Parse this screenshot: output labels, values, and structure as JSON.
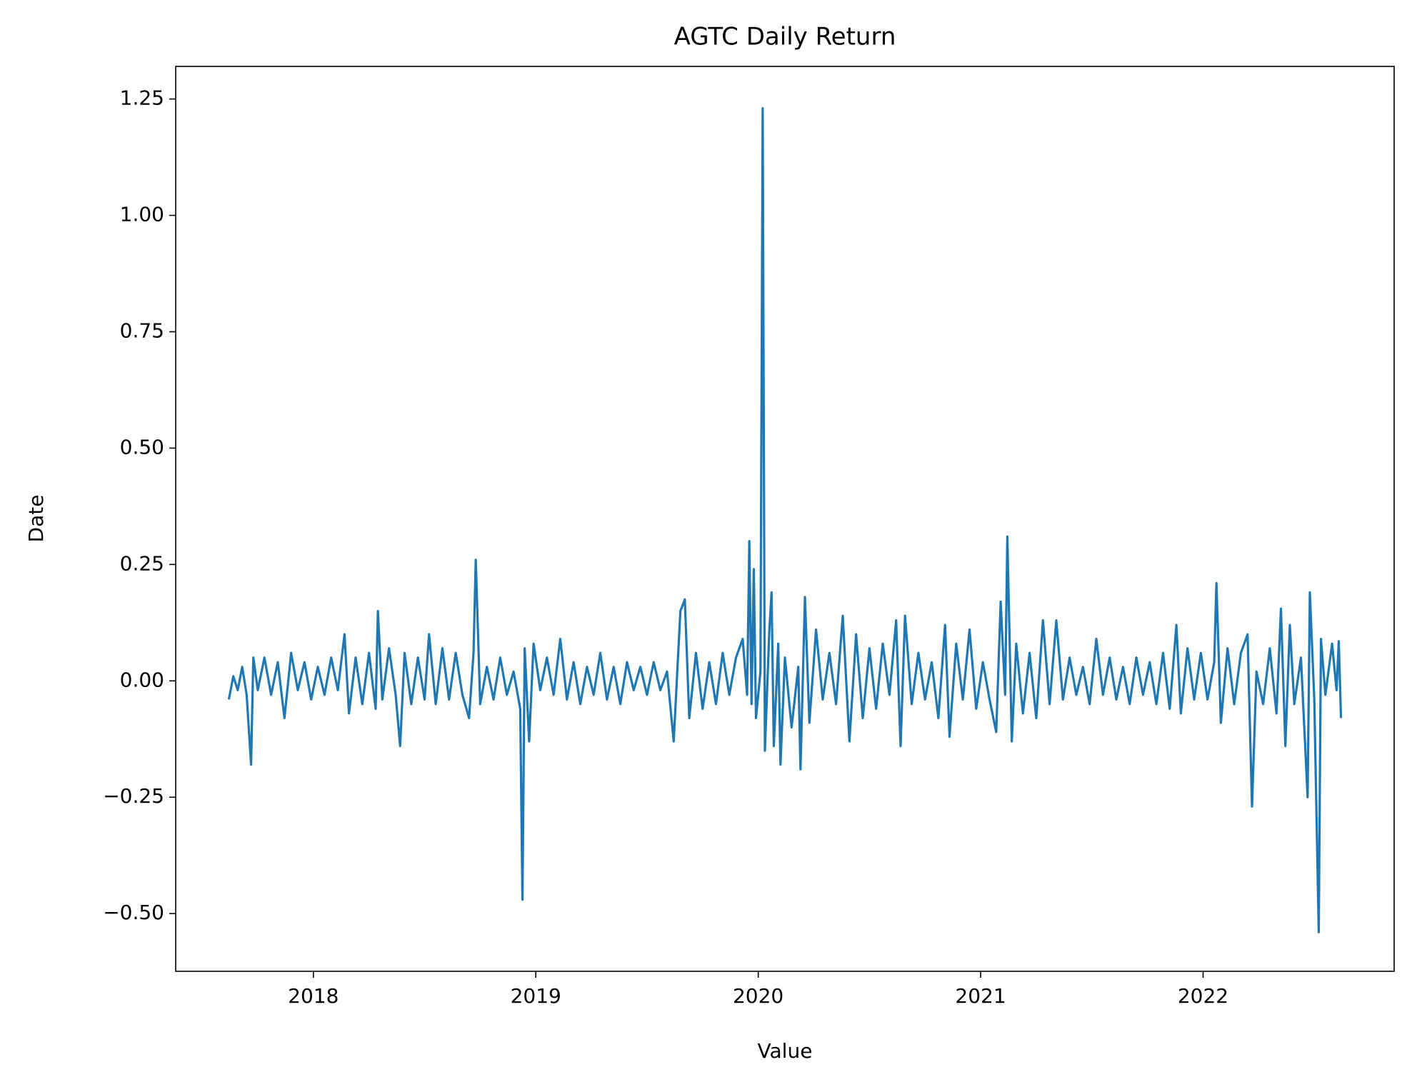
{
  "chart_data": {
    "type": "line",
    "title": "AGTC Daily Return",
    "x_label": "Value",
    "y_label": "Date",
    "color": "#1f77b4",
    "x": [
      2017.62,
      2017.64,
      2017.66,
      2017.68,
      2017.7,
      2017.72,
      2017.73,
      2017.75,
      2017.78,
      2017.81,
      2017.84,
      2017.87,
      2017.9,
      2017.93,
      2017.96,
      2017.99,
      2018.02,
      2018.05,
      2018.08,
      2018.11,
      2018.14,
      2018.16,
      2018.19,
      2018.22,
      2018.25,
      2018.28,
      2018.29,
      2018.31,
      2018.34,
      2018.37,
      2018.39,
      2018.41,
      2018.44,
      2018.47,
      2018.5,
      2018.52,
      2018.55,
      2018.58,
      2018.61,
      2018.64,
      2018.67,
      2018.7,
      2018.72,
      2018.73,
      2018.75,
      2018.78,
      2018.81,
      2018.84,
      2018.87,
      2018.9,
      2018.93,
      2018.94,
      2018.95,
      2018.97,
      2018.99,
      2019.02,
      2019.05,
      2019.08,
      2019.11,
      2019.14,
      2019.17,
      2019.2,
      2019.23,
      2019.26,
      2019.29,
      2019.32,
      2019.35,
      2019.38,
      2019.41,
      2019.44,
      2019.47,
      2019.5,
      2019.53,
      2019.56,
      2019.59,
      2019.62,
      2019.65,
      2019.67,
      2019.69,
      2019.72,
      2019.75,
      2019.78,
      2019.81,
      2019.84,
      2019.87,
      2019.9,
      2019.93,
      2019.95,
      2019.96,
      2019.97,
      2019.98,
      2019.99,
      2020.01,
      2020.02,
      2020.03,
      2020.05,
      2020.06,
      2020.07,
      2020.09,
      2020.1,
      2020.12,
      2020.15,
      2020.18,
      2020.19,
      2020.21,
      2020.23,
      2020.26,
      2020.29,
      2020.32,
      2020.35,
      2020.38,
      2020.41,
      2020.44,
      2020.47,
      2020.5,
      2020.53,
      2020.56,
      2020.59,
      2020.62,
      2020.64,
      2020.66,
      2020.69,
      2020.72,
      2020.75,
      2020.78,
      2020.81,
      2020.84,
      2020.86,
      2020.89,
      2020.92,
      2020.95,
      2020.98,
      2021.01,
      2021.04,
      2021.07,
      2021.09,
      2021.11,
      2021.12,
      2021.14,
      2021.16,
      2021.19,
      2021.22,
      2021.25,
      2021.28,
      2021.31,
      2021.34,
      2021.37,
      2021.4,
      2021.43,
      2021.46,
      2021.49,
      2021.52,
      2021.55,
      2021.58,
      2021.61,
      2021.64,
      2021.67,
      2021.7,
      2021.73,
      2021.76,
      2021.79,
      2021.82,
      2021.85,
      2021.88,
      2021.9,
      2021.93,
      2021.96,
      2021.99,
      2022.02,
      2022.05,
      2022.06,
      2022.08,
      2022.11,
      2022.14,
      2022.17,
      2022.2,
      2022.22,
      2022.24,
      2022.27,
      2022.3,
      2022.33,
      2022.35,
      2022.37,
      2022.39,
      2022.41,
      2022.44,
      2022.47,
      2022.48,
      2022.5,
      2022.52,
      2022.53,
      2022.55,
      2022.58,
      2022.6,
      2022.61,
      2022.62
    ],
    "values": [
      -0.04,
      0.01,
      -0.02,
      0.03,
      -0.03,
      -0.18,
      0.05,
      -0.02,
      0.05,
      -0.03,
      0.04,
      -0.08,
      0.06,
      -0.02,
      0.04,
      -0.04,
      0.03,
      -0.03,
      0.05,
      -0.02,
      0.1,
      -0.07,
      0.05,
      -0.05,
      0.06,
      -0.06,
      0.15,
      -0.04,
      0.07,
      -0.03,
      -0.14,
      0.06,
      -0.05,
      0.05,
      -0.04,
      0.1,
      -0.05,
      0.07,
      -0.04,
      0.06,
      -0.03,
      -0.08,
      0.06,
      0.26,
      -0.05,
      0.03,
      -0.04,
      0.05,
      -0.03,
      0.02,
      -0.06,
      -0.47,
      0.07,
      -0.13,
      0.08,
      -0.02,
      0.05,
      -0.03,
      0.09,
      -0.04,
      0.04,
      -0.05,
      0.03,
      -0.03,
      0.06,
      -0.04,
      0.03,
      -0.05,
      0.04,
      -0.02,
      0.03,
      -0.03,
      0.04,
      -0.02,
      0.02,
      -0.13,
      0.15,
      0.175,
      -0.08,
      0.06,
      -0.06,
      0.04,
      -0.05,
      0.06,
      -0.03,
      0.05,
      0.09,
      -0.03,
      0.3,
      -0.05,
      0.24,
      -0.08,
      0.02,
      1.23,
      -0.15,
      0.11,
      0.19,
      -0.14,
      0.08,
      -0.18,
      0.05,
      -0.1,
      0.03,
      -0.19,
      0.18,
      -0.09,
      0.11,
      -0.04,
      0.06,
      -0.05,
      0.14,
      -0.13,
      0.1,
      -0.08,
      0.07,
      -0.06,
      0.08,
      -0.03,
      0.13,
      -0.14,
      0.14,
      -0.05,
      0.06,
      -0.04,
      0.04,
      -0.08,
      0.12,
      -0.12,
      0.08,
      -0.04,
      0.11,
      -0.06,
      0.04,
      -0.04,
      -0.11,
      0.17,
      -0.03,
      0.31,
      -0.13,
      0.08,
      -0.07,
      0.06,
      -0.08,
      0.13,
      -0.05,
      0.13,
      -0.04,
      0.05,
      -0.03,
      0.03,
      -0.05,
      0.09,
      -0.03,
      0.05,
      -0.04,
      0.03,
      -0.05,
      0.05,
      -0.03,
      0.04,
      -0.05,
      0.06,
      -0.06,
      0.12,
      -0.07,
      0.07,
      -0.04,
      0.06,
      -0.04,
      0.04,
      0.21,
      -0.09,
      0.07,
      -0.05,
      0.06,
      0.1,
      -0.27,
      0.02,
      -0.05,
      0.07,
      -0.07,
      0.155,
      -0.14,
      0.12,
      -0.05,
      0.05,
      -0.25,
      0.19,
      -0.04,
      -0.54,
      0.09,
      -0.03,
      0.08,
      -0.02,
      0.085,
      -0.08
    ],
    "xlim": [
      2017.381,
      2022.859
    ],
    "xticks": [
      2018,
      2019,
      2020,
      2021,
      2022
    ],
    "ylim": [
      -0.624,
      1.32
    ],
    "yticks": [
      {
        "value": -0.5,
        "label": "−0.50"
      },
      {
        "value": -0.25,
        "label": "−0.25"
      },
      {
        "value": 0,
        "label": "0.00"
      },
      {
        "value": 0.25,
        "label": "0.25"
      },
      {
        "value": 0.5,
        "label": "0.50"
      },
      {
        "value": 0.75,
        "label": "0.75"
      },
      {
        "value": 1,
        "label": "1.00"
      },
      {
        "value": 1.25,
        "label": "1.25"
      }
    ],
    "grid": false
  }
}
